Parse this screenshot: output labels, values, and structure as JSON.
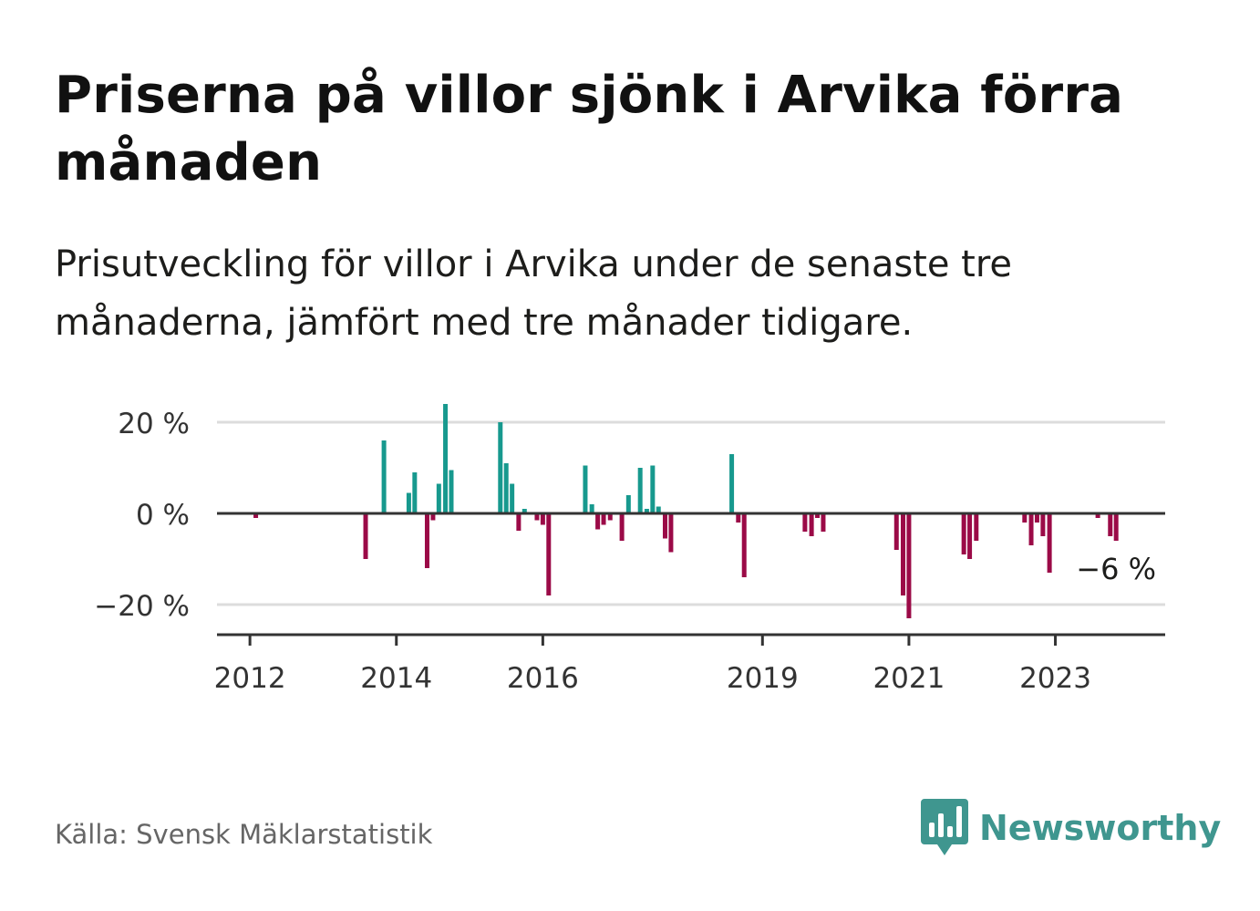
{
  "title": "Priserna på villor sjönk i Arvika förra månaden",
  "subtitle": "Prisutveckling för villor i Arvika under de senaste tre månaderna, jämfört med tre månader tidigare.",
  "source": "Källa: Svensk Mäklarstatistik",
  "brand": "Newsworthy",
  "colors": {
    "positive": "#17998e",
    "negative": "#9b0a47",
    "grid": "#dcdcdc",
    "axis": "#333333",
    "brand": "#3f968f"
  },
  "chart_data": {
    "type": "bar",
    "ylim": [
      -26,
      24
    ],
    "y_ticks": [
      {
        "value": 20,
        "label": "20 %"
      },
      {
        "value": 0,
        "label": "0 %"
      },
      {
        "value": -20,
        "label": "−20 %"
      }
    ],
    "x_ticks": [
      {
        "value": 2012,
        "label": "2012"
      },
      {
        "value": 2014,
        "label": "2014"
      },
      {
        "value": 2016,
        "label": "2016"
      },
      {
        "value": 2019,
        "label": "2019"
      },
      {
        "value": 2021,
        "label": "2021"
      },
      {
        "value": 2023,
        "label": "2023"
      }
    ],
    "xlim": [
      2011.55,
      2024.5
    ],
    "grid": true,
    "last_value_label": "−6 %",
    "x": [
      2012.08,
      2013.58,
      2013.83,
      2014.17,
      2014.25,
      2014.42,
      2014.5,
      2014.58,
      2014.67,
      2014.75,
      2015.42,
      2015.5,
      2015.58,
      2015.67,
      2015.75,
      2015.92,
      2016.0,
      2016.08,
      2016.58,
      2016.67,
      2016.75,
      2016.83,
      2016.92,
      2017.08,
      2017.17,
      2017.33,
      2017.42,
      2017.5,
      2017.58,
      2017.67,
      2017.75,
      2018.58,
      2018.67,
      2018.75,
      2019.58,
      2019.67,
      2019.75,
      2019.83,
      2020.83,
      2020.92,
      2021.0,
      2021.75,
      2021.83,
      2021.92,
      2022.58,
      2022.67,
      2022.75,
      2022.83,
      2022.92,
      2023.58,
      2023.75,
      2023.83
    ],
    "values": [
      -1,
      -10,
      16,
      4.5,
      9,
      -12,
      -1.5,
      6.5,
      24,
      9.5,
      20,
      11,
      6.5,
      -3.8,
      1,
      -1.5,
      -2.5,
      -18,
      10.5,
      2,
      -3.5,
      -2.5,
      -1.5,
      -6,
      4,
      10,
      1,
      10.5,
      1.5,
      -5.5,
      -8.5,
      13,
      -2,
      -14,
      -4,
      -5,
      -1,
      -4,
      -8,
      -18,
      -23,
      -9,
      -10,
      -6,
      -2,
      -7,
      -2,
      -5,
      -13,
      -1,
      -5,
      -6
    ]
  }
}
